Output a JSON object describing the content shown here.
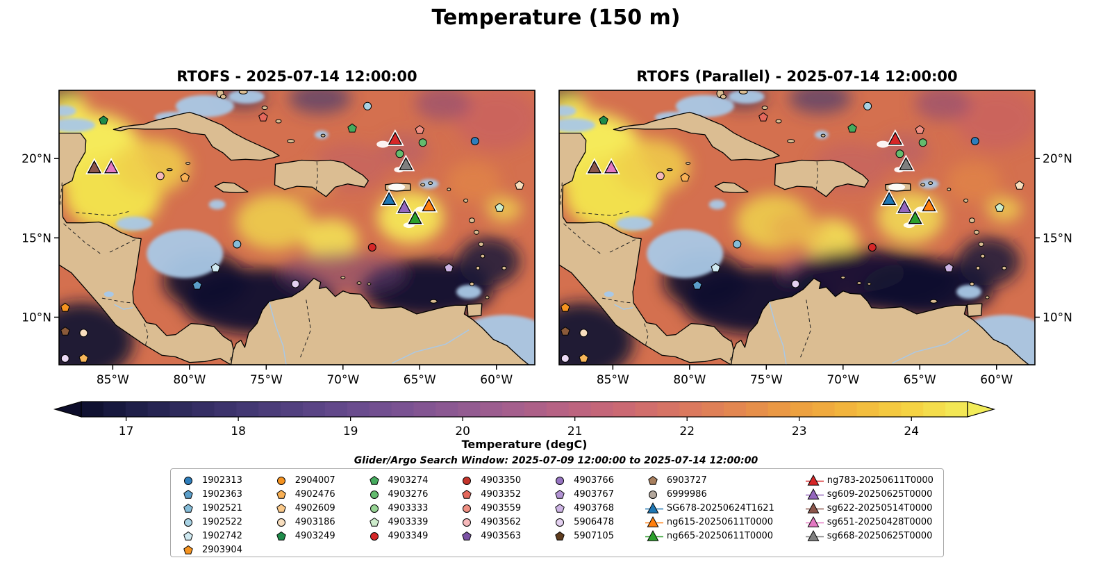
{
  "chart_data": {
    "type": "heatmap",
    "title": "Temperature (150 m)",
    "panels": [
      {
        "title": "RTOFS - 2025-07-14 12:00:00"
      },
      {
        "title": "RTOFS (Parallel) - 2025-07-14 12:00:00"
      }
    ],
    "extent": {
      "lon_min": -88.5,
      "lon_max": -57.5,
      "lat_min": 7.0,
      "lat_max": 24.3
    },
    "x_ticks": [
      {
        "lon": -85,
        "label": "85°W"
      },
      {
        "lon": -80,
        "label": "80°W"
      },
      {
        "lon": -75,
        "label": "75°W"
      },
      {
        "lon": -70,
        "label": "70°W"
      },
      {
        "lon": -65,
        "label": "65°W"
      },
      {
        "lon": -60,
        "label": "60°W"
      }
    ],
    "y_ticks": [
      {
        "lat": 20,
        "label": "20°N"
      },
      {
        "lat": 15,
        "label": "15°N"
      },
      {
        "lat": 10,
        "label": "10°N"
      }
    ],
    "colorbar": {
      "label": "Temperature (degC)",
      "vmin": 16.6,
      "vmax": 24.5,
      "ticks": [
        17,
        18,
        19,
        20,
        21,
        22,
        23,
        24
      ],
      "stops": [
        [
          16.6,
          "#0d0d2b"
        ],
        [
          17.0,
          "#1b1c44"
        ],
        [
          17.5,
          "#2e2a5c"
        ],
        [
          18.0,
          "#403671"
        ],
        [
          18.5,
          "#534180"
        ],
        [
          19.0,
          "#674b8d"
        ],
        [
          19.5,
          "#7c5392"
        ],
        [
          20.0,
          "#915a92"
        ],
        [
          20.5,
          "#a75f8c"
        ],
        [
          21.0,
          "#bc6380"
        ],
        [
          21.5,
          "#cd6a71"
        ],
        [
          22.0,
          "#da785f"
        ],
        [
          22.5,
          "#e48a4e"
        ],
        [
          23.0,
          "#eda03f"
        ],
        [
          23.5,
          "#f3b83c"
        ],
        [
          24.0,
          "#f5d343"
        ],
        [
          24.5,
          "#f2ec59"
        ]
      ]
    },
    "annotation": "Glider/Argo Search Window: 2025-07-09 12:00:00 to 2025-07-14 12:00:00",
    "colors": {
      "land": "#dbbd92",
      "coast": "#000000",
      "shallow": "#a9c8e6",
      "ocean_base": "#d4704f",
      "background": "#ffffff"
    },
    "legend": {
      "columns": [
        [
          {
            "label": "1902313",
            "shape": "circle",
            "color": "#2e7ebc"
          },
          {
            "label": "1902363",
            "shape": "pentagon",
            "color": "#5b9ec9"
          },
          {
            "label": "1902521",
            "shape": "pentagon",
            "color": "#85bcd8"
          },
          {
            "label": "1902522",
            "shape": "circle",
            "color": "#a8d2e4"
          },
          {
            "label": "1902742",
            "shape": "pentagon",
            "color": "#cfe9f1"
          },
          {
            "label": "2903904",
            "shape": "pentagon",
            "color": "#f59320"
          }
        ],
        [
          {
            "label": "2904007",
            "shape": "circle",
            "color": "#f59320"
          },
          {
            "label": "4902476",
            "shape": "pentagon",
            "color": "#f8b055"
          },
          {
            "label": "4902609",
            "shape": "pentagon",
            "color": "#fac98a"
          },
          {
            "label": "4903186",
            "shape": "circle",
            "color": "#f8debe"
          },
          {
            "label": "4903249",
            "shape": "pentagon",
            "color": "#1e8c4a"
          }
        ],
        [
          {
            "label": "4903274",
            "shape": "pentagon",
            "color": "#46ab5e"
          },
          {
            "label": "4903276",
            "shape": "circle",
            "color": "#63bb6e"
          },
          {
            "label": "4903333",
            "shape": "circle",
            "color": "#97d494"
          },
          {
            "label": "4903339",
            "shape": "pentagon",
            "color": "#cdeccb"
          },
          {
            "label": "4903349",
            "shape": "circle",
            "color": "#d62728"
          }
        ],
        [
          {
            "label": "4903350",
            "shape": "circle",
            "color": "#c4342b"
          },
          {
            "label": "4903352",
            "shape": "pentagon",
            "color": "#e4685c"
          },
          {
            "label": "4903559",
            "shape": "circle",
            "color": "#ef8f82"
          },
          {
            "label": "4903562",
            "shape": "circle",
            "color": "#f6b8ba"
          },
          {
            "label": "4903563",
            "shape": "pentagon",
            "color": "#7b52a5"
          }
        ],
        [
          {
            "label": "4903766",
            "shape": "circle",
            "color": "#9674c1"
          },
          {
            "label": "4903767",
            "shape": "pentagon",
            "color": "#b293d3"
          },
          {
            "label": "4903768",
            "shape": "pentagon",
            "color": "#cdb4e4"
          },
          {
            "label": "5906478",
            "shape": "circle",
            "color": "#e3d0f0"
          },
          {
            "label": "5907105",
            "shape": "pentagon",
            "color": "#5f3c1e"
          }
        ],
        [
          {
            "label": "6903727",
            "shape": "pentagon",
            "color": "#a87f5e"
          },
          {
            "label": "6999986",
            "shape": "circle",
            "color": "#b3a79c"
          },
          {
            "label": "SG678-20250624T1621",
            "shape": "glider",
            "color": "#1f77b4"
          },
          {
            "label": "ng615-20250611T0000",
            "shape": "glider",
            "color": "#ff7f0e"
          },
          {
            "label": "ng665-20250611T0000",
            "shape": "glider",
            "color": "#2ca02c"
          }
        ],
        [
          {
            "label": "ng783-20250611T0000",
            "shape": "glider",
            "color": "#d62728"
          },
          {
            "label": "sg609-20250625T0000",
            "shape": "glider",
            "color": "#9467bd"
          },
          {
            "label": "sg622-20250514T0000",
            "shape": "glider",
            "color": "#8c564b"
          },
          {
            "label": "sg651-20250428T0000",
            "shape": "glider",
            "color": "#e377c2"
          },
          {
            "label": "sg668-20250625T0000",
            "shape": "glider",
            "color": "#7f7f7f"
          }
        ]
      ]
    },
    "markers": {
      "argo": [
        {
          "shape": "pentagon",
          "color": "#1e8c4a",
          "lon": -85.6,
          "lat": 22.4
        },
        {
          "shape": "circle",
          "color": "#a8d2e4",
          "lon": -68.4,
          "lat": 23.3
        },
        {
          "shape": "circle",
          "color": "#f6b8ba",
          "lon": -81.9,
          "lat": 18.9
        },
        {
          "shape": "pentagon",
          "color": "#f8b055",
          "lon": -80.3,
          "lat": 18.8
        },
        {
          "shape": "pentagon",
          "color": "#e4685c",
          "lon": -75.2,
          "lat": 22.6
        },
        {
          "shape": "pentagon",
          "color": "#46ab5e",
          "lon": -69.4,
          "lat": 21.9
        },
        {
          "shape": "pentagon",
          "color": "#ef8f82",
          "lon": -65.0,
          "lat": 21.8
        },
        {
          "shape": "circle",
          "color": "#2e7ebc",
          "lon": -61.4,
          "lat": 21.1
        },
        {
          "shape": "circle",
          "color": "#63bb6e",
          "lon": -64.8,
          "lat": 21.0
        },
        {
          "shape": "circle",
          "color": "#63bb6e",
          "lon": -66.3,
          "lat": 20.3
        },
        {
          "shape": "circle",
          "color": "#85bcd8",
          "lon": -76.9,
          "lat": 14.6
        },
        {
          "shape": "circle",
          "color": "#d62728",
          "lon": -68.1,
          "lat": 14.4
        },
        {
          "shape": "pentagon",
          "color": "#cfe9f1",
          "lon": -78.3,
          "lat": 13.1
        },
        {
          "shape": "pentagon",
          "color": "#5b9ec9",
          "lon": -79.5,
          "lat": 12.0
        },
        {
          "shape": "circle",
          "color": "#e3d0f0",
          "lon": -73.1,
          "lat": 12.1
        },
        {
          "shape": "pentagon",
          "color": "#cdb4e4",
          "lon": -63.1,
          "lat": 13.1
        },
        {
          "shape": "pentagon",
          "color": "#cdeccb",
          "lon": -59.8,
          "lat": 16.9
        },
        {
          "shape": "pentagon",
          "color": "#f8debe",
          "lon": -58.5,
          "lat": 18.3
        },
        {
          "shape": "pentagon",
          "color": "#f59320",
          "lon": -88.1,
          "lat": 10.6
        },
        {
          "shape": "pentagon",
          "color": "#8a5a3a",
          "lon": -88.1,
          "lat": 9.1
        },
        {
          "shape": "circle",
          "color": "#f8debe",
          "lon": -86.9,
          "lat": 9.0
        },
        {
          "shape": "circle",
          "color": "#ead9f5",
          "lon": -88.1,
          "lat": 7.4
        },
        {
          "shape": "pentagon",
          "color": "#f9b75a",
          "lon": -86.9,
          "lat": 7.4
        }
      ],
      "gliders": [
        {
          "id": "ng783-20250611T0000",
          "color": "#d62728",
          "lon": -66.6,
          "lat": 21.2
        },
        {
          "id": "sg668-20250625T0000",
          "color": "#7f7f7f",
          "lon": -65.9,
          "lat": 19.6
        },
        {
          "id": "SG678-20250624T1621",
          "color": "#1f77b4",
          "lon": -67.0,
          "lat": 17.4
        },
        {
          "id": "sg609-20250625T0000",
          "color": "#9467bd",
          "lon": -66.0,
          "lat": 16.9
        },
        {
          "id": "ng615-20250611T0000",
          "color": "#ff7f0e",
          "lon": -64.4,
          "lat": 17.0
        },
        {
          "id": "ng665-20250611T0000",
          "color": "#2ca02c",
          "lon": -65.3,
          "lat": 16.2
        },
        {
          "id": "sg622-20250514T0000",
          "color": "#8c564b",
          "lon": -86.2,
          "lat": 19.4
        },
        {
          "id": "sg651-20250428T0000",
          "color": "#e377c2",
          "lon": -85.1,
          "lat": 19.4
        }
      ]
    }
  }
}
